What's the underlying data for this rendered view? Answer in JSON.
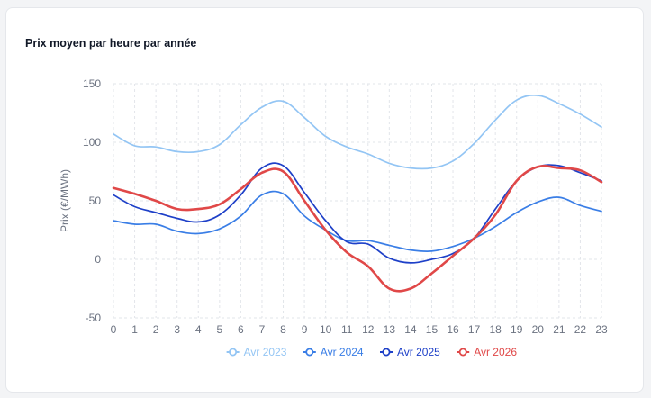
{
  "card": {
    "title": "Prix moyen par heure par année"
  },
  "colors": {
    "grid": "#e2e5ea"
  },
  "chart_data": {
    "type": "line",
    "title": "Prix moyen par heure par année",
    "xlabel": "",
    "ylabel": "Prix (€/MWh)",
    "x": [
      0,
      1,
      2,
      3,
      4,
      5,
      6,
      7,
      8,
      9,
      10,
      11,
      12,
      13,
      14,
      15,
      16,
      17,
      18,
      19,
      20,
      21,
      22,
      23
    ],
    "ylim": [
      -50,
      150
    ],
    "yticks": [
      -50,
      0,
      50,
      100,
      150
    ],
    "grid": true,
    "legend_position": "bottom-center",
    "series": [
      {
        "name": "Avr 2023",
        "color": "#93c5f4",
        "stroke_weight": "normal",
        "values": [
          107,
          97,
          96,
          92,
          92,
          98,
          115,
          130,
          135,
          121,
          105,
          96,
          90,
          82,
          78,
          78,
          84,
          99,
          119,
          136,
          140,
          133,
          124,
          113
        ]
      },
      {
        "name": "Avr 2024",
        "color": "#3a7ee6",
        "stroke_weight": "normal",
        "values": [
          33,
          30,
          30,
          24,
          22,
          26,
          37,
          55,
          56,
          37,
          25,
          16,
          16,
          12,
          8,
          7,
          11,
          18,
          28,
          40,
          49,
          53,
          46,
          41
        ]
      },
      {
        "name": "Avr 2025",
        "color": "#1e40c8",
        "stroke_weight": "normal",
        "values": [
          55,
          45,
          40,
          35,
          32,
          38,
          55,
          78,
          80,
          57,
          33,
          15,
          13,
          1,
          -3,
          0,
          5,
          18,
          43,
          67,
          79,
          80,
          74,
          67
        ]
      },
      {
        "name": "Avr 2026",
        "color": "#e04848",
        "stroke_weight": "bold",
        "values": [
          61,
          56,
          50,
          43,
          43,
          47,
          60,
          74,
          75,
          50,
          25,
          6,
          -6,
          -25,
          -25,
          -12,
          3,
          18,
          38,
          67,
          79,
          78,
          76,
          66
        ]
      }
    ]
  }
}
